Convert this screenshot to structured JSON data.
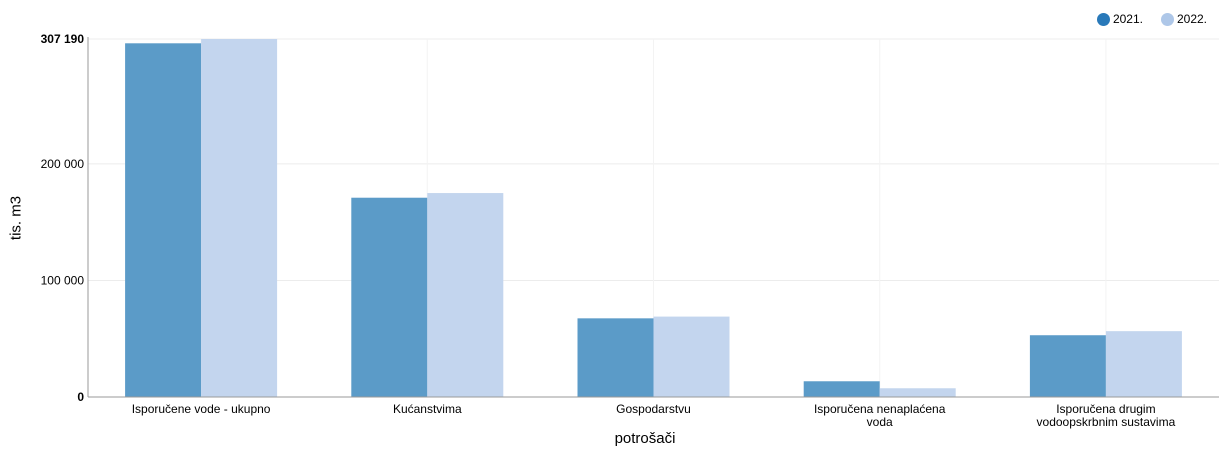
{
  "chart_data": {
    "type": "bar",
    "xlabel": "potrošači",
    "ylabel": "tis. m3",
    "ylim": [
      0,
      307190
    ],
    "yticks": [
      {
        "value": 0,
        "label": "0",
        "bold": true
      },
      {
        "value": 100000,
        "label": "100 000",
        "bold": false
      },
      {
        "value": 200000,
        "label": "200 000",
        "bold": false
      },
      {
        "value": 307190,
        "label": "307 190",
        "bold": true
      }
    ],
    "categories": [
      [
        "Isporučene vode - ukupno"
      ],
      [
        "Kućanstvima"
      ],
      [
        "Gospodarstvu"
      ],
      [
        "Isporučena nenaplaćena",
        "voda"
      ],
      [
        "Isporučena drugim",
        "vodoopskrbnim sustavima"
      ]
    ],
    "series": [
      {
        "name": "2021.",
        "color": "#5b9bc8",
        "legend_color": "#2979b9",
        "values": [
          303500,
          171000,
          67500,
          13500,
          53000
        ]
      },
      {
        "name": "2022.",
        "color": "#c3d5ee",
        "legend_color": "#aec7e8",
        "values": [
          307190,
          175000,
          69000,
          7500,
          56500
        ]
      }
    ],
    "grid": true,
    "legend": "top-right"
  }
}
